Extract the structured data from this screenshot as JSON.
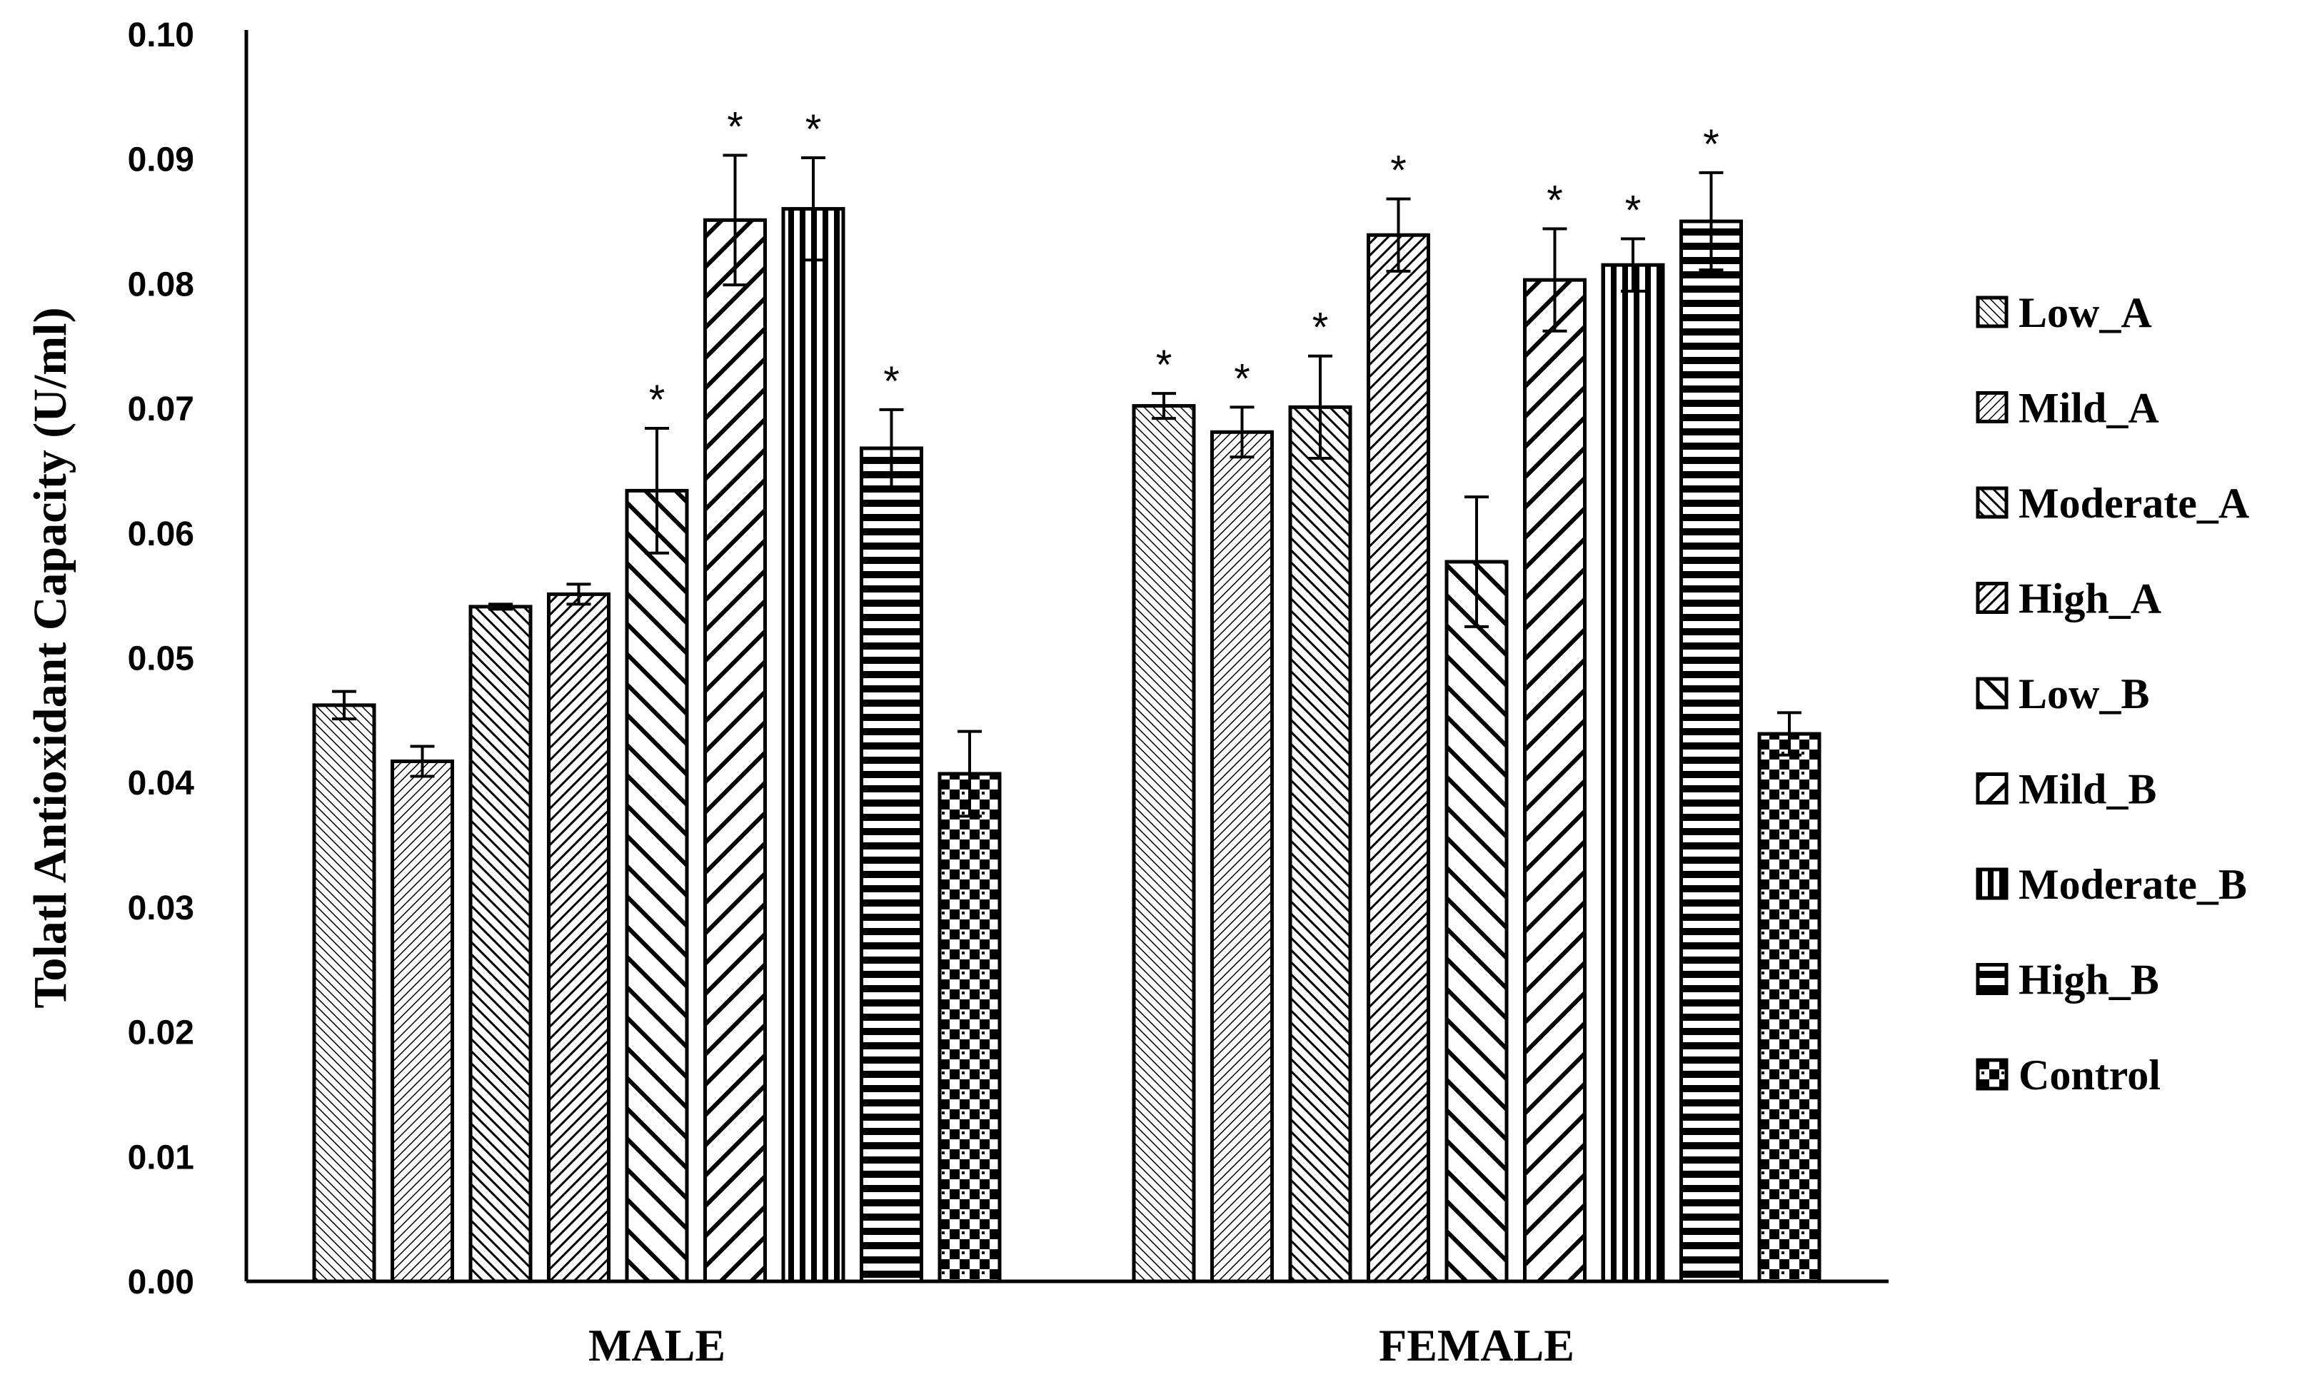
{
  "chart_data": {
    "type": "bar",
    "title": "",
    "xlabel": "",
    "ylabel": "Tolatl Antioxidant Capacity (U/ml)",
    "ylim": [
      0,
      0.1
    ],
    "yticks": [
      "0.00",
      "0.01",
      "0.02",
      "0.03",
      "0.04",
      "0.05",
      "0.06",
      "0.07",
      "0.08",
      "0.09",
      "0.10"
    ],
    "categories": [
      "MALE",
      "FEMALE"
    ],
    "legend_position": "right",
    "significance_marker": "*",
    "series": [
      {
        "name": "Low_A",
        "pattern": "diag-fine-left",
        "values": [
          0.0462,
          0.0702
        ],
        "errors": [
          0.0011,
          0.001
        ],
        "significant": [
          false,
          true
        ]
      },
      {
        "name": "Mild_A",
        "pattern": "diag-fine-right",
        "values": [
          0.0417,
          0.0681
        ],
        "errors": [
          0.0012,
          0.002
        ],
        "significant": [
          false,
          true
        ]
      },
      {
        "name": "Moderate_A",
        "pattern": "diag-medium-left",
        "values": [
          0.0541,
          0.0701
        ],
        "errors": [
          0.0002,
          0.0041
        ],
        "significant": [
          false,
          true
        ]
      },
      {
        "name": "High_A",
        "pattern": "diag-medium-right",
        "values": [
          0.0551,
          0.0839
        ],
        "errors": [
          0.0008,
          0.0029
        ],
        "significant": [
          false,
          true
        ]
      },
      {
        "name": "Low_B",
        "pattern": "diag-wide-left",
        "values": [
          0.0634,
          0.0577
        ],
        "errors": [
          0.005,
          0.0052
        ],
        "significant": [
          true,
          false
        ]
      },
      {
        "name": "Mild_B",
        "pattern": "diag-wide-right",
        "values": [
          0.0851,
          0.0803
        ],
        "errors": [
          0.0052,
          0.0041
        ],
        "significant": [
          true,
          true
        ]
      },
      {
        "name": "Moderate_B",
        "pattern": "vertical",
        "values": [
          0.086,
          0.0815
        ],
        "errors": [
          0.0041,
          0.0021
        ],
        "significant": [
          true,
          true
        ]
      },
      {
        "name": "High_B",
        "pattern": "horizontal",
        "values": [
          0.0668,
          0.085
        ],
        "errors": [
          0.0031,
          0.0039
        ],
        "significant": [
          true,
          true
        ]
      },
      {
        "name": "Control",
        "pattern": "checker",
        "values": [
          0.0407,
          0.0439
        ],
        "errors": [
          0.0034,
          0.0017
        ],
        "significant": [
          false,
          false
        ]
      }
    ]
  }
}
